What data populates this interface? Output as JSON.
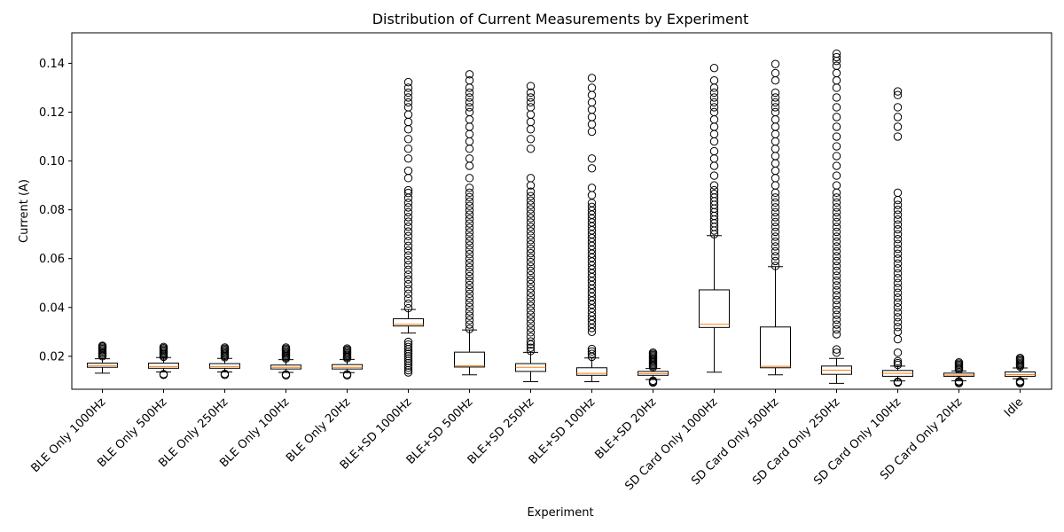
{
  "chart_data": {
    "type": "box",
    "title": "Distribution of Current Measurements by Experiment",
    "xlabel": "Experiment",
    "ylabel": "Current (A)",
    "ylim": [
      0.0065,
      0.1525
    ],
    "yticks": [
      0.02,
      0.04,
      0.06,
      0.08,
      0.1,
      0.12,
      0.14
    ],
    "ytick_labels": [
      "0.02",
      "0.04",
      "0.06",
      "0.08",
      "0.10",
      "0.12",
      "0.14"
    ],
    "grid": false,
    "colors": {
      "box_edge": "#000000",
      "median": "#ff7f0e",
      "flier_edge": "#000000"
    },
    "categories": [
      "BLE Only 1000Hz",
      "BLE Only 500Hz",
      "BLE Only 250Hz",
      "BLE Only 100Hz",
      "BLE Only 20Hz",
      "BLE+SD 1000Hz",
      "BLE+SD 500Hz",
      "BLE+SD 250Hz",
      "BLE+SD 100Hz",
      "BLE+SD 20Hz",
      "SD Card Only 1000Hz",
      "SD Card Only 500Hz",
      "SD Card Only 250Hz",
      "SD Card Only 100Hz",
      "SD Card Only 20Hz",
      "Idle"
    ],
    "boxes": [
      {
        "whislo": 0.0131,
        "q1": 0.0155,
        "med": 0.0162,
        "q3": 0.0172,
        "whishi": 0.019,
        "fliers": [
          0.02,
          0.0205,
          0.021,
          0.0215,
          0.022,
          0.0225,
          0.023,
          0.0235,
          0.024,
          0.0243
        ]
      },
      {
        "whislo": 0.0136,
        "q1": 0.0151,
        "med": 0.0158,
        "q3": 0.0172,
        "whishi": 0.0195,
        "fliers": [
          0.0124,
          0.0127,
          0.0198,
          0.0203,
          0.0208,
          0.0213,
          0.0218,
          0.0223,
          0.0228,
          0.0233,
          0.0238
        ]
      },
      {
        "whislo": 0.0136,
        "q1": 0.0151,
        "med": 0.0158,
        "q3": 0.017,
        "whishi": 0.0191,
        "fliers": [
          0.0124,
          0.0128,
          0.0196,
          0.0201,
          0.0206,
          0.0211,
          0.0216,
          0.0221,
          0.0226,
          0.0231,
          0.0236
        ]
      },
      {
        "whislo": 0.0134,
        "q1": 0.0148,
        "med": 0.0155,
        "q3": 0.0164,
        "whishi": 0.0186,
        "fliers": [
          0.0122,
          0.0126,
          0.0191,
          0.0196,
          0.0201,
          0.0206,
          0.0211,
          0.0216,
          0.0221,
          0.0226,
          0.0231,
          0.0236
        ]
      },
      {
        "whislo": 0.0133,
        "q1": 0.0148,
        "med": 0.0155,
        "q3": 0.0166,
        "whishi": 0.0187,
        "fliers": [
          0.0122,
          0.0126,
          0.0192,
          0.0197,
          0.0202,
          0.0207,
          0.0212,
          0.0217,
          0.0222,
          0.0227,
          0.0232
        ]
      },
      {
        "whislo": 0.0295,
        "q1": 0.0324,
        "med": 0.0331,
        "q3": 0.0354,
        "whishi": 0.0392,
        "fliers": [
          0.0134,
          0.0143,
          0.0153,
          0.0162,
          0.0172,
          0.0181,
          0.0191,
          0.02,
          0.021,
          0.0219,
          0.0229,
          0.0238,
          0.0248,
          0.0259,
          0.0397,
          0.0416,
          0.0436,
          0.0456,
          0.0475,
          0.0495,
          0.0515,
          0.0534,
          0.0554,
          0.0574,
          0.0593,
          0.0613,
          0.0633,
          0.0652,
          0.0672,
          0.0692,
          0.0711,
          0.0731,
          0.0751,
          0.077,
          0.079,
          0.081,
          0.0829,
          0.0849,
          0.0869,
          0.088,
          0.093,
          0.096,
          0.101,
          0.105,
          0.109,
          0.113,
          0.116,
          0.119,
          0.122,
          0.124,
          0.126,
          0.128,
          0.13,
          0.1323
        ]
      },
      {
        "whislo": 0.0124,
        "q1": 0.0156,
        "med": 0.0161,
        "q3": 0.0217,
        "whishi": 0.0308,
        "fliers": [
          0.0312,
          0.033,
          0.0348,
          0.0366,
          0.0384,
          0.0402,
          0.042,
          0.0438,
          0.0456,
          0.0474,
          0.0492,
          0.051,
          0.0528,
          0.0546,
          0.0564,
          0.0582,
          0.06,
          0.0618,
          0.0636,
          0.0654,
          0.0672,
          0.069,
          0.0708,
          0.0726,
          0.0744,
          0.0762,
          0.078,
          0.0798,
          0.0816,
          0.0834,
          0.0852,
          0.087,
          0.089,
          0.093,
          0.098,
          0.101,
          0.105,
          0.108,
          0.111,
          0.114,
          0.117,
          0.12,
          0.122,
          0.124,
          0.126,
          0.128,
          0.13,
          0.133,
          0.1355
        ]
      },
      {
        "whislo": 0.0096,
        "q1": 0.0138,
        "med": 0.0155,
        "q3": 0.017,
        "whishi": 0.0216,
        "fliers": [
          0.0222,
          0.0235,
          0.0248,
          0.0261,
          0.028,
          0.0298,
          0.0316,
          0.0334,
          0.0352,
          0.037,
          0.0388,
          0.0406,
          0.0424,
          0.0442,
          0.046,
          0.0478,
          0.0496,
          0.0514,
          0.0532,
          0.055,
          0.0568,
          0.0586,
          0.0604,
          0.0622,
          0.064,
          0.0658,
          0.0676,
          0.0694,
          0.0712,
          0.073,
          0.0748,
          0.0766,
          0.0784,
          0.0802,
          0.082,
          0.0838,
          0.0856,
          0.0874,
          0.09,
          0.093,
          0.105,
          0.109,
          0.113,
          0.116,
          0.119,
          0.122,
          0.124,
          0.126,
          0.128,
          0.1307
        ]
      },
      {
        "whislo": 0.0096,
        "q1": 0.0122,
        "med": 0.013,
        "q3": 0.0153,
        "whishi": 0.0193,
        "fliers": [
          0.0198,
          0.021,
          0.022,
          0.023,
          0.03,
          0.0316,
          0.0332,
          0.0348,
          0.0364,
          0.038,
          0.0396,
          0.0412,
          0.0428,
          0.0444,
          0.046,
          0.0476,
          0.0492,
          0.0508,
          0.0524,
          0.054,
          0.0556,
          0.0572,
          0.0588,
          0.0604,
          0.062,
          0.0636,
          0.0652,
          0.0668,
          0.0684,
          0.07,
          0.0716,
          0.0732,
          0.0748,
          0.0764,
          0.078,
          0.0796,
          0.0812,
          0.0828,
          0.086,
          0.089,
          0.097,
          0.101,
          0.112,
          0.115,
          0.118,
          0.121,
          0.124,
          0.127,
          0.13,
          0.134
        ]
      },
      {
        "whislo": 0.0105,
        "q1": 0.0122,
        "med": 0.0129,
        "q3": 0.0138,
        "whishi": 0.015,
        "fliers": [
          0.0092,
          0.0096,
          0.01,
          0.0155,
          0.016,
          0.0165,
          0.017,
          0.0175,
          0.018,
          0.0185,
          0.019,
          0.0195,
          0.02,
          0.0205,
          0.021,
          0.0215
        ]
      },
      {
        "whislo": 0.0135,
        "q1": 0.0318,
        "med": 0.0331,
        "q3": 0.0472,
        "whishi": 0.0694,
        "fliers": [
          0.07,
          0.0715,
          0.073,
          0.0745,
          0.076,
          0.0775,
          0.079,
          0.0805,
          0.082,
          0.0835,
          0.085,
          0.0865,
          0.088,
          0.09,
          0.094,
          0.098,
          0.101,
          0.104,
          0.108,
          0.111,
          0.114,
          0.117,
          0.12,
          0.122,
          0.124,
          0.126,
          0.128,
          0.13,
          0.133,
          0.1381
        ]
      },
      {
        "whislo": 0.0124,
        "q1": 0.0153,
        "med": 0.0159,
        "q3": 0.032,
        "whishi": 0.0567,
        "fliers": [
          0.057,
          0.059,
          0.061,
          0.063,
          0.065,
          0.067,
          0.069,
          0.071,
          0.073,
          0.075,
          0.077,
          0.079,
          0.081,
          0.083,
          0.085,
          0.087,
          0.09,
          0.093,
          0.096,
          0.099,
          0.102,
          0.105,
          0.108,
          0.111,
          0.114,
          0.117,
          0.12,
          0.122,
          0.124,
          0.126,
          0.128,
          0.133,
          0.136,
          0.1397
        ]
      },
      {
        "whislo": 0.0089,
        "q1": 0.0126,
        "med": 0.0143,
        "q3": 0.016,
        "whishi": 0.0191,
        "fliers": [
          0.0215,
          0.0228,
          0.029,
          0.031,
          0.033,
          0.035,
          0.037,
          0.039,
          0.041,
          0.043,
          0.045,
          0.047,
          0.049,
          0.051,
          0.053,
          0.055,
          0.057,
          0.059,
          0.061,
          0.063,
          0.065,
          0.067,
          0.069,
          0.071,
          0.073,
          0.075,
          0.077,
          0.079,
          0.081,
          0.083,
          0.085,
          0.087,
          0.09,
          0.094,
          0.098,
          0.102,
          0.106,
          0.11,
          0.114,
          0.118,
          0.122,
          0.126,
          0.13,
          0.133,
          0.136,
          0.139,
          0.141,
          0.1425,
          0.144
        ]
      },
      {
        "whislo": 0.0099,
        "q1": 0.0118,
        "med": 0.013,
        "q3": 0.0142,
        "whishi": 0.016,
        "fliers": [
          0.0092,
          0.0096,
          0.0165,
          0.0172,
          0.018,
          0.0215,
          0.027,
          0.03,
          0.032,
          0.034,
          0.036,
          0.038,
          0.04,
          0.042,
          0.044,
          0.046,
          0.048,
          0.05,
          0.052,
          0.054,
          0.056,
          0.058,
          0.06,
          0.062,
          0.064,
          0.066,
          0.068,
          0.07,
          0.072,
          0.074,
          0.076,
          0.078,
          0.08,
          0.082,
          0.084,
          0.087,
          0.11,
          0.114,
          0.118,
          0.122,
          0.127,
          0.1285
        ]
      },
      {
        "whislo": 0.01,
        "q1": 0.0118,
        "med": 0.0123,
        "q3": 0.0131,
        "whishi": 0.014,
        "fliers": [
          0.009,
          0.0094,
          0.0098,
          0.0145,
          0.015,
          0.0155,
          0.016,
          0.0165,
          0.017,
          0.0175
        ]
      },
      {
        "whislo": 0.0108,
        "q1": 0.0118,
        "med": 0.0125,
        "q3": 0.0136,
        "whishi": 0.0152,
        "fliers": [
          0.009,
          0.0094,
          0.0098,
          0.0158,
          0.0163,
          0.0168,
          0.0173,
          0.0178,
          0.0183,
          0.0188,
          0.0193
        ]
      }
    ]
  }
}
